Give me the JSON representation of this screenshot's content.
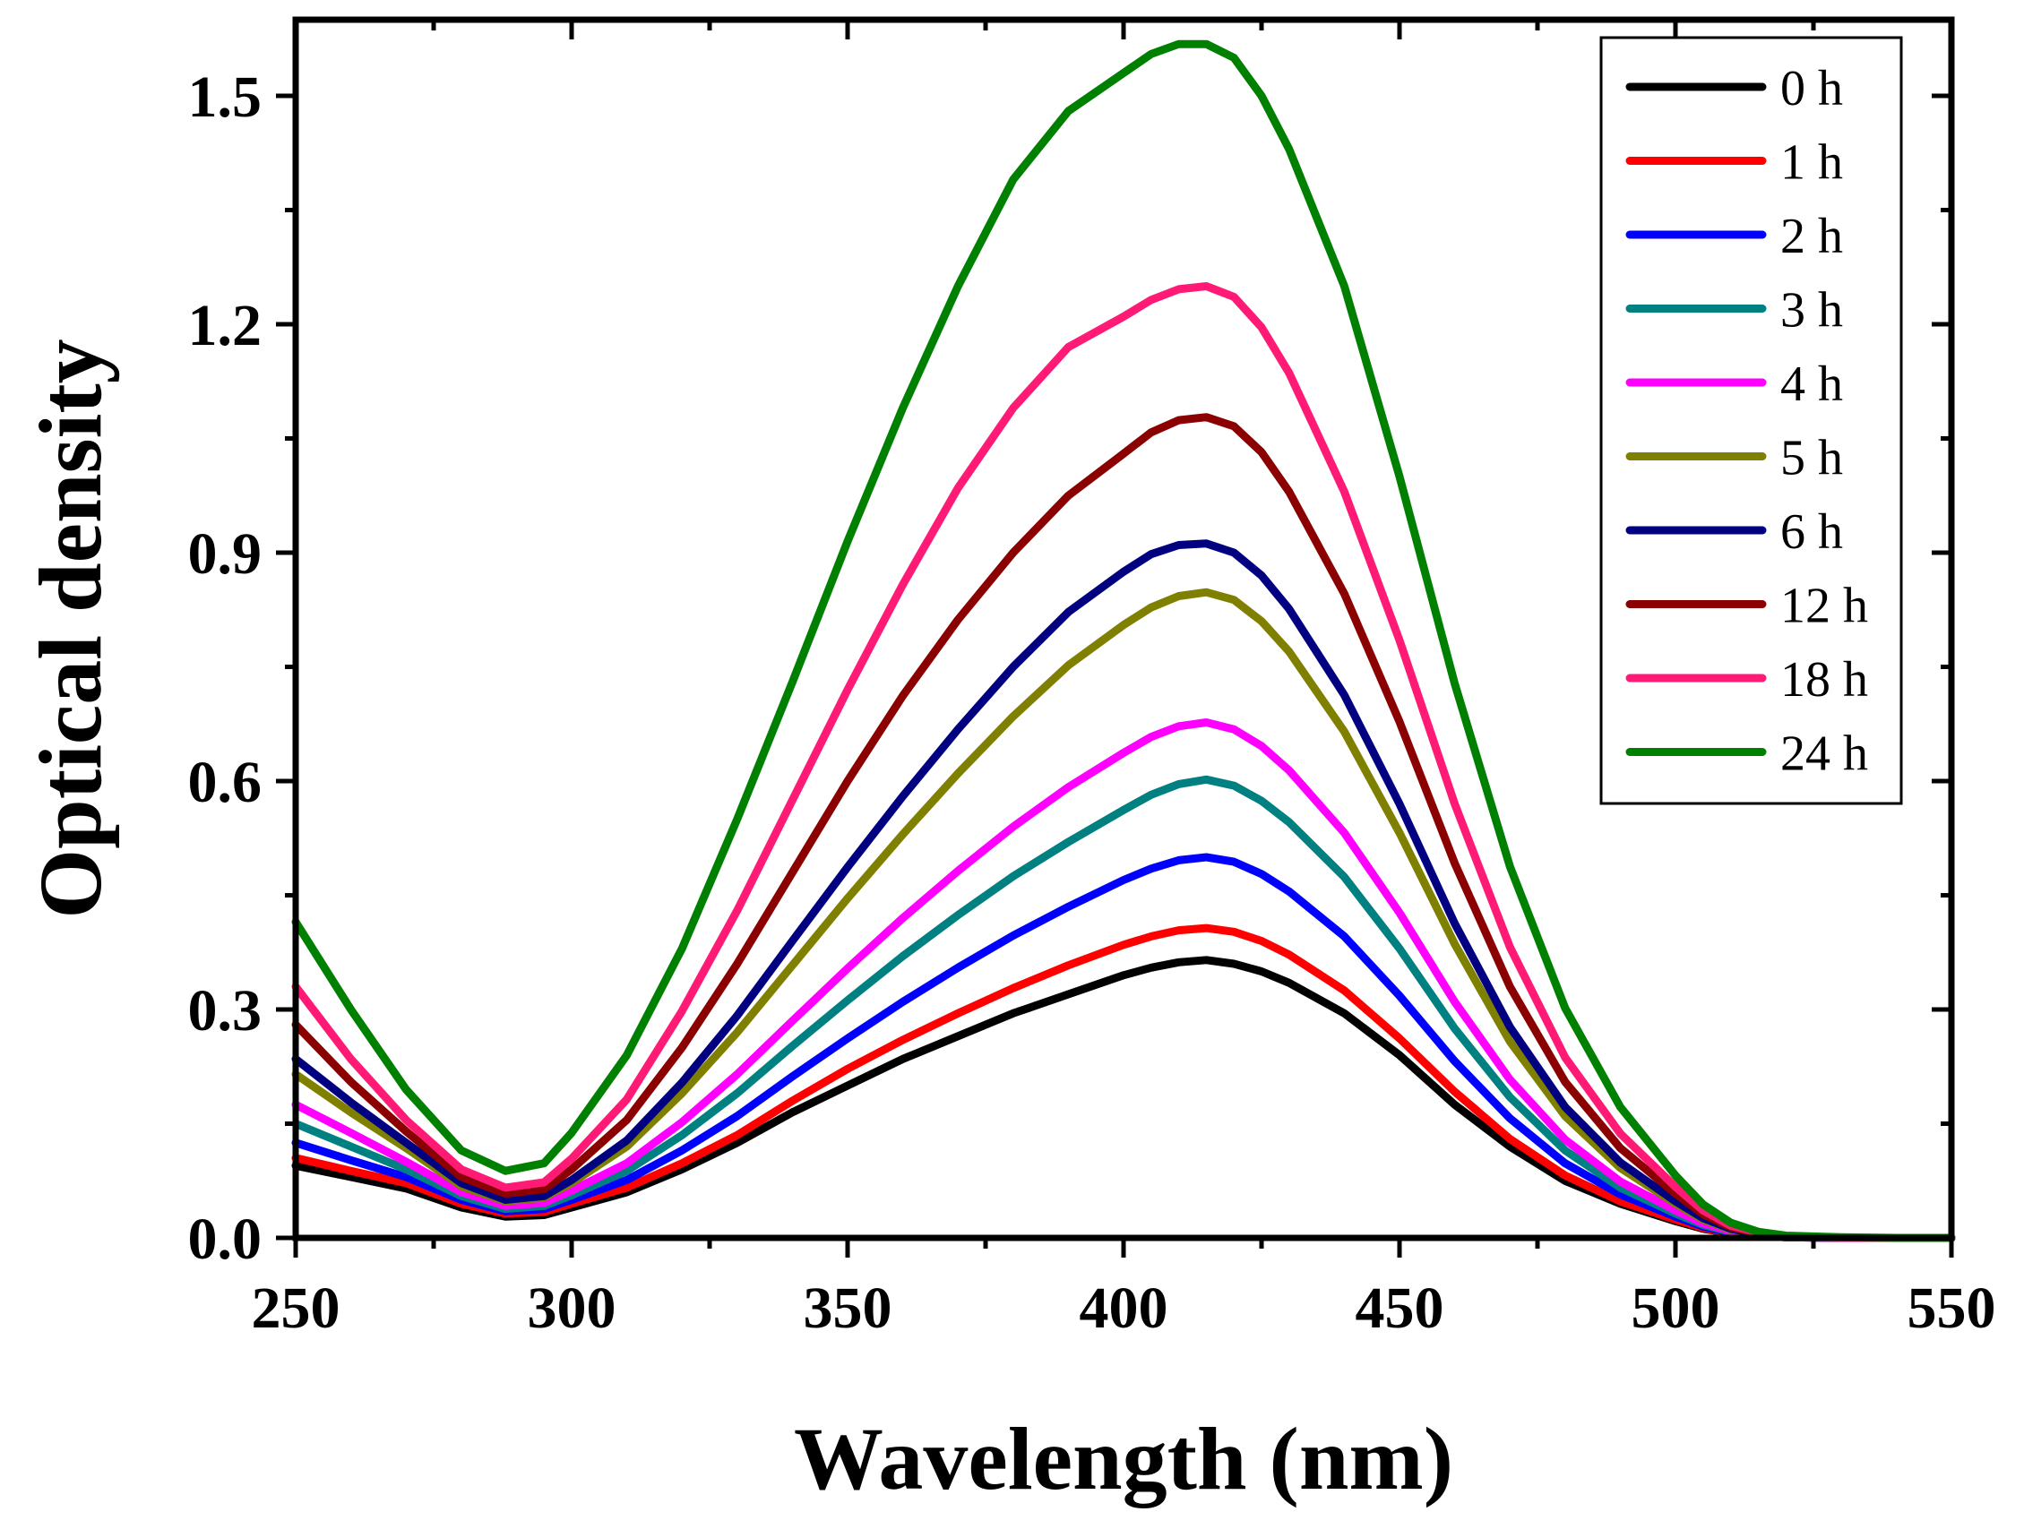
{
  "chart_data": {
    "type": "line",
    "title": "",
    "xlabel": "Wavelength (nm)",
    "ylabel": "Optical density",
    "xlim": [
      250,
      550
    ],
    "ylim": [
      0,
      1.6
    ],
    "xticks": [
      250,
      300,
      350,
      400,
      450,
      500,
      550
    ],
    "xtick_labels": [
      "250",
      "300",
      "350",
      "400",
      "450",
      "500",
      "550"
    ],
    "yticks": [
      0,
      0.3,
      0.6,
      0.9,
      1.2,
      1.5
    ],
    "ytick_labels": [
      "0.0",
      "0.3",
      "0.6",
      "0.9",
      "1.2",
      "1.5"
    ],
    "legend_position": "top-right",
    "grid": false,
    "x": [
      250,
      260,
      270,
      280,
      288,
      295,
      300,
      310,
      320,
      330,
      340,
      350,
      360,
      370,
      380,
      390,
      400,
      405,
      410,
      415,
      420,
      425,
      430,
      440,
      450,
      460,
      470,
      480,
      490,
      500,
      505,
      510,
      515,
      520,
      530,
      540,
      550
    ],
    "series": [
      {
        "name": "0 h",
        "color": "#000000",
        "values": [
          0.095,
          0.08,
          0.065,
          0.04,
          0.028,
          0.03,
          0.04,
          0.06,
          0.09,
          0.125,
          0.165,
          0.2,
          0.235,
          0.265,
          0.295,
          0.32,
          0.345,
          0.355,
          0.362,
          0.365,
          0.36,
          0.35,
          0.335,
          0.295,
          0.24,
          0.175,
          0.12,
          0.075,
          0.045,
          0.022,
          0.012,
          0.006,
          0.003,
          0.001,
          0.0,
          0.0,
          0.0
        ]
      },
      {
        "name": "1 h",
        "color": "#ff0000",
        "values": [
          0.105,
          0.088,
          0.072,
          0.045,
          0.032,
          0.034,
          0.045,
          0.066,
          0.098,
          0.135,
          0.18,
          0.222,
          0.26,
          0.295,
          0.328,
          0.358,
          0.385,
          0.396,
          0.404,
          0.407,
          0.402,
          0.39,
          0.372,
          0.325,
          0.262,
          0.192,
          0.13,
          0.082,
          0.048,
          0.024,
          0.013,
          0.006,
          0.003,
          0.001,
          0.0,
          0.0,
          0.0
        ]
      },
      {
        "name": "2 h",
        "color": "#0000ff",
        "values": [
          0.125,
          0.102,
          0.08,
          0.05,
          0.035,
          0.038,
          0.05,
          0.076,
          0.115,
          0.16,
          0.212,
          0.262,
          0.31,
          0.355,
          0.397,
          0.435,
          0.47,
          0.485,
          0.496,
          0.5,
          0.494,
          0.478,
          0.455,
          0.396,
          0.318,
          0.232,
          0.157,
          0.098,
          0.057,
          0.028,
          0.015,
          0.007,
          0.003,
          0.001,
          0.0,
          0.0,
          0.0
        ]
      },
      {
        "name": "3 h",
        "color": "#008080",
        "values": [
          0.15,
          0.12,
          0.09,
          0.055,
          0.038,
          0.042,
          0.056,
          0.088,
          0.135,
          0.19,
          0.252,
          0.312,
          0.37,
          0.424,
          0.475,
          0.52,
          0.562,
          0.582,
          0.596,
          0.602,
          0.594,
          0.574,
          0.546,
          0.474,
          0.38,
          0.275,
          0.185,
          0.115,
          0.066,
          0.032,
          0.017,
          0.008,
          0.004,
          0.001,
          0.0,
          0.0,
          0.0
        ]
      },
      {
        "name": "4 h",
        "color": "#ff00ff",
        "values": [
          0.175,
          0.138,
          0.1,
          0.06,
          0.042,
          0.046,
          0.062,
          0.098,
          0.152,
          0.215,
          0.285,
          0.354,
          0.42,
          0.482,
          0.54,
          0.592,
          0.637,
          0.658,
          0.672,
          0.677,
          0.668,
          0.646,
          0.614,
          0.532,
          0.427,
          0.31,
          0.208,
          0.129,
          0.074,
          0.036,
          0.019,
          0.009,
          0.004,
          0.001,
          0.0,
          0.0,
          0.0
        ]
      },
      {
        "name": "5 h",
        "color": "#808000",
        "values": [
          0.215,
          0.165,
          0.118,
          0.068,
          0.048,
          0.053,
          0.072,
          0.12,
          0.19,
          0.27,
          0.358,
          0.446,
          0.53,
          0.61,
          0.685,
          0.752,
          0.805,
          0.828,
          0.843,
          0.848,
          0.838,
          0.81,
          0.77,
          0.665,
          0.532,
          0.386,
          0.258,
          0.16,
          0.092,
          0.045,
          0.024,
          0.011,
          0.005,
          0.002,
          0.0,
          0.0,
          0.0
        ]
      },
      {
        "name": "6 h",
        "color": "#000080",
        "values": [
          0.235,
          0.178,
          0.125,
          0.072,
          0.05,
          0.055,
          0.076,
          0.128,
          0.204,
          0.292,
          0.39,
          0.487,
          0.58,
          0.668,
          0.75,
          0.822,
          0.875,
          0.898,
          0.91,
          0.912,
          0.9,
          0.87,
          0.826,
          0.713,
          0.57,
          0.413,
          0.277,
          0.172,
          0.099,
          0.048,
          0.026,
          0.012,
          0.005,
          0.002,
          0.0,
          0.0,
          0.0
        ]
      },
      {
        "name": "12 h",
        "color": "#8b0000",
        "values": [
          0.28,
          0.205,
          0.14,
          0.08,
          0.058,
          0.064,
          0.09,
          0.155,
          0.25,
          0.36,
          0.48,
          0.6,
          0.712,
          0.812,
          0.9,
          0.975,
          1.03,
          1.058,
          1.074,
          1.078,
          1.066,
          1.032,
          0.98,
          0.846,
          0.678,
          0.492,
          0.33,
          0.205,
          0.118,
          0.058,
          0.031,
          0.014,
          0.006,
          0.002,
          0.0,
          0.0,
          0.0
        ]
      },
      {
        "name": "18 h",
        "color": "#ff1a75",
        "values": [
          0.33,
          0.235,
          0.155,
          0.09,
          0.066,
          0.073,
          0.104,
          0.182,
          0.298,
          0.43,
          0.575,
          0.72,
          0.858,
          0.985,
          1.09,
          1.17,
          1.21,
          1.232,
          1.246,
          1.25,
          1.236,
          1.196,
          1.136,
          0.98,
          0.785,
          0.57,
          0.382,
          0.237,
          0.137,
          0.067,
          0.036,
          0.016,
          0.007,
          0.002,
          0.0,
          0.0,
          0.0
        ]
      },
      {
        "name": "24 h",
        "color": "#008000",
        "values": [
          0.415,
          0.3,
          0.195,
          0.115,
          0.088,
          0.098,
          0.138,
          0.24,
          0.38,
          0.55,
          0.73,
          0.915,
          1.09,
          1.25,
          1.39,
          1.48,
          1.53,
          1.555,
          1.568,
          1.568,
          1.55,
          1.5,
          1.43,
          1.25,
          1.0,
          0.728,
          0.488,
          0.302,
          0.172,
          0.082,
          0.044,
          0.02,
          0.008,
          0.003,
          0.001,
          0.0,
          0.0
        ]
      }
    ]
  }
}
